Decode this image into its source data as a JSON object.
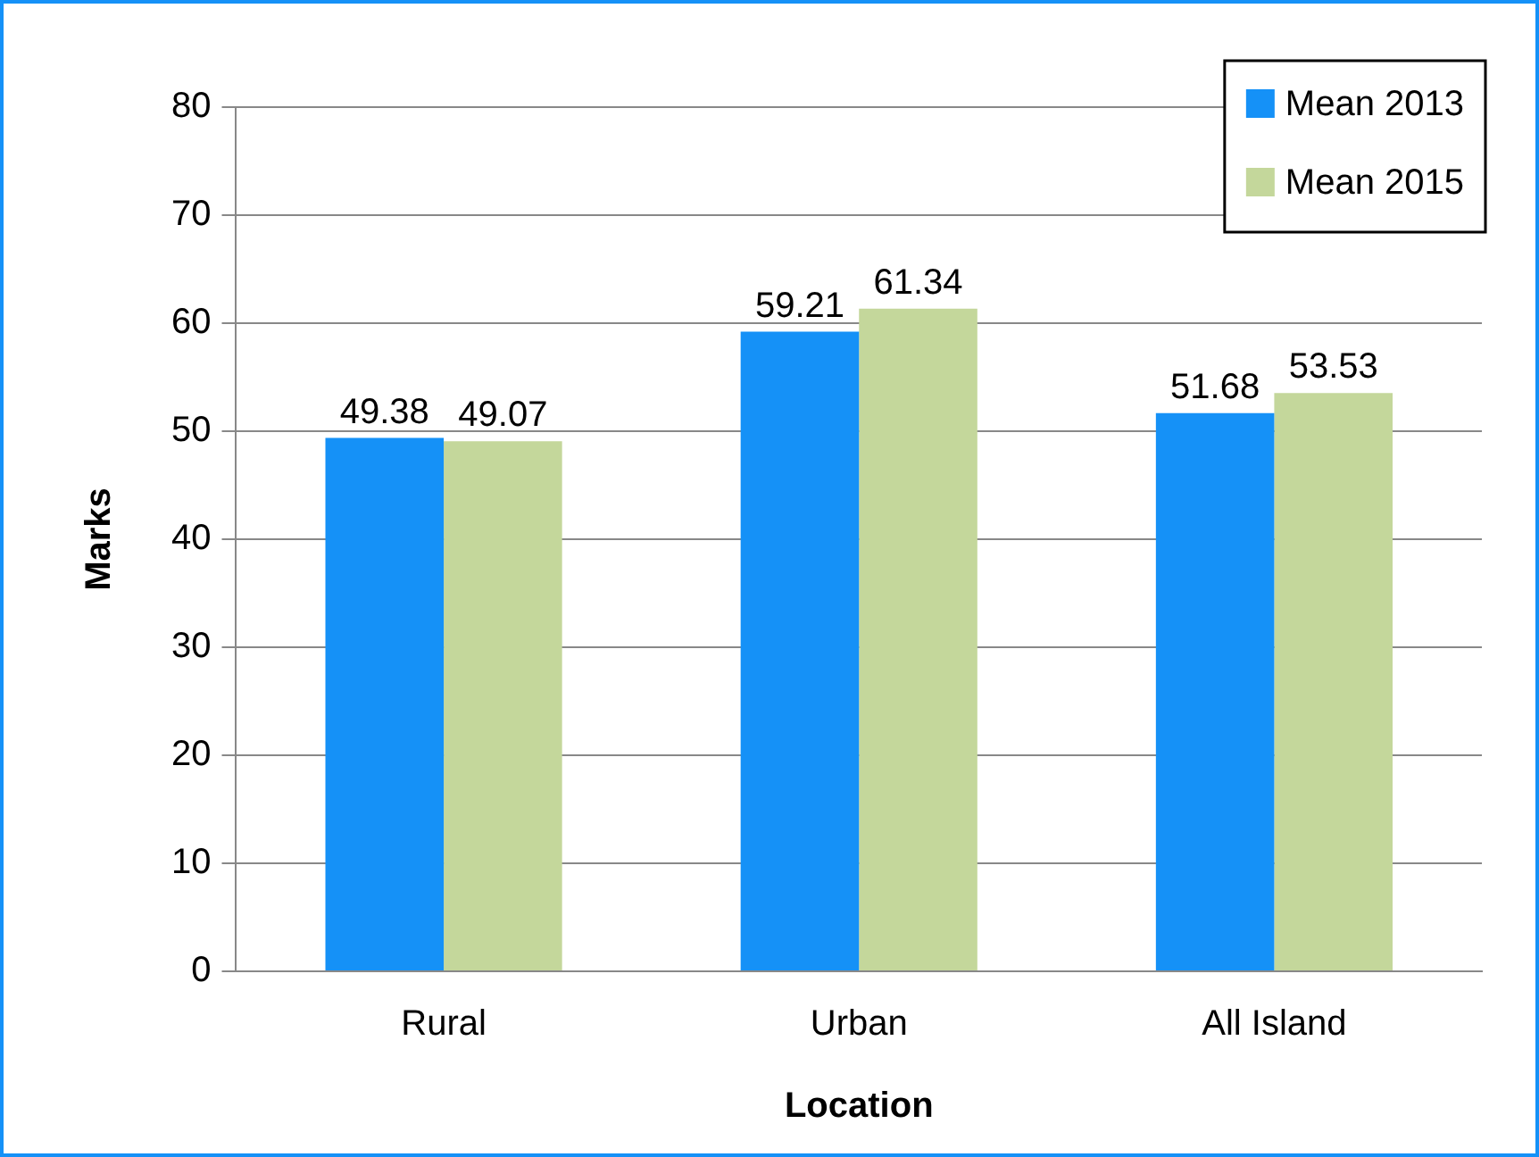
{
  "chart_data": {
    "type": "bar",
    "xlabel": "Location",
    "ylabel": "Marks",
    "categories": [
      "Rural",
      "Urban",
      "All Island"
    ],
    "series": [
      {
        "name": "Mean 2013",
        "color": "#1591f7",
        "values": [
          49.38,
          59.21,
          51.68
        ]
      },
      {
        "name": "Mean 2015",
        "color": "#c4d79b",
        "values": [
          49.07,
          61.34,
          53.53
        ]
      }
    ],
    "ylim": [
      0,
      80
    ],
    "yticks": [
      0,
      10,
      20,
      30,
      40,
      50,
      60,
      70,
      80
    ],
    "grid": "y",
    "legend": "top right",
    "data_labels": true
  }
}
